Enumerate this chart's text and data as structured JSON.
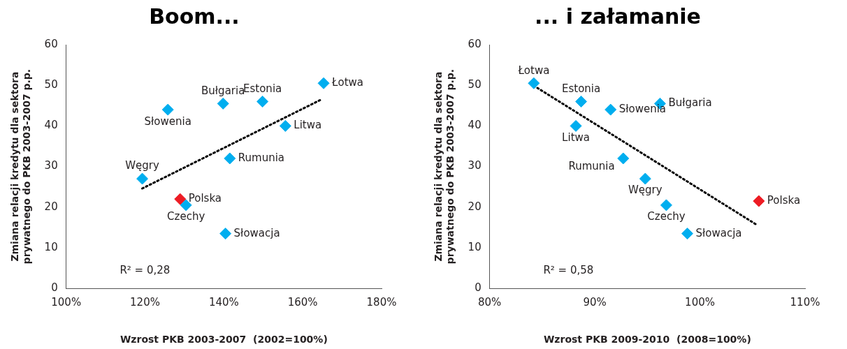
{
  "chart_data": [
    {
      "type": "scatter",
      "title": "Boom...",
      "xlabel": "Wzrost PKB 2003-2007  (2002=100%)",
      "ylabel": "Zmiana relacji kredytu dla sektora prywatnego do PKB 2003-2007 p.p.",
      "xlim": [
        100,
        180
      ],
      "xticks": [
        {
          "value": 100,
          "label": "100%"
        },
        {
          "value": 120,
          "label": "120%"
        },
        {
          "value": 140,
          "label": "140%"
        },
        {
          "value": 160,
          "label": "160%"
        },
        {
          "value": 180,
          "label": "180%"
        }
      ],
      "ylim": [
        0,
        60
      ],
      "yticks": [
        0,
        10,
        20,
        30,
        40,
        50,
        60
      ],
      "grid": false,
      "legend": false,
      "marker": "diamond",
      "annotations": [
        "R² = 0,28"
      ],
      "series": [
        {
          "name": "Węgry",
          "color": "#00aeef",
          "x": [
            119.3
          ],
          "values": [
            27
          ]
        },
        {
          "name": "Polska",
          "color": "#ed1c24",
          "x": [
            128.9
          ],
          "values": [
            22
          ]
        },
        {
          "name": "Czechy",
          "color": "#00aeef",
          "x": [
            130.4
          ],
          "values": [
            20.5
          ]
        },
        {
          "name": "Słowenia",
          "color": "#00aeef",
          "x": [
            125.8
          ],
          "values": [
            44
          ]
        },
        {
          "name": "Bułgaria",
          "color": "#00aeef",
          "x": [
            139.8
          ],
          "values": [
            45.5
          ]
        },
        {
          "name": "Estonia",
          "color": "#00aeef",
          "x": [
            149.8
          ],
          "values": [
            46
          ]
        },
        {
          "name": "Łotwa",
          "color": "#00aeef",
          "x": [
            165.3
          ],
          "values": [
            50.5
          ]
        },
        {
          "name": "Litwa",
          "color": "#00aeef",
          "x": [
            155.6
          ],
          "values": [
            40
          ]
        },
        {
          "name": "Rumunia",
          "color": "#00aeef",
          "x": [
            141.5
          ],
          "values": [
            32
          ]
        },
        {
          "name": "Słowacja",
          "color": "#00aeef",
          "x": [
            140.4
          ],
          "values": [
            13.5
          ]
        },
        {
          "type": "line",
          "color": "#000000",
          "line_style": "dotted",
          "marker": "none",
          "x": [
            119.3,
            164.5
          ],
          "values": [
            24.6,
            46.4
          ]
        }
      ]
    },
    {
      "type": "scatter",
      "title": "... i załamanie",
      "xlabel": "Wzrost PKB 2009-2010  (2008=100%)",
      "ylabel": "Zmiana relacji kredytu dla sektora prywatnego do PKB 2003-2007 p.p.",
      "xlim": [
        80,
        110
      ],
      "xticks": [
        {
          "value": 80,
          "label": "80%"
        },
        {
          "value": 90,
          "label": "90%"
        },
        {
          "value": 100,
          "label": "100%"
        },
        {
          "value": 110,
          "label": "110%"
        }
      ],
      "ylim": [
        0,
        60
      ],
      "yticks": [
        0,
        10,
        20,
        30,
        40,
        50,
        60
      ],
      "grid": false,
      "legend": false,
      "marker": "diamond",
      "annotations": [
        "R² = 0,58"
      ],
      "series": [
        {
          "name": "Łotwa",
          "color": "#00aeef",
          "x": [
            84.2
          ],
          "values": [
            50.5
          ]
        },
        {
          "name": "Estonia",
          "color": "#00aeef",
          "x": [
            88.7
          ],
          "values": [
            46
          ]
        },
        {
          "name": "Bułgaria",
          "color": "#00aeef",
          "x": [
            96.2
          ],
          "values": [
            45.5
          ]
        },
        {
          "name": "Słowenia",
          "color": "#00aeef",
          "x": [
            91.5
          ],
          "values": [
            44
          ]
        },
        {
          "name": "Litwa",
          "color": "#00aeef",
          "x": [
            88.2
          ],
          "values": [
            40
          ]
        },
        {
          "name": "Rumunia",
          "color": "#00aeef",
          "x": [
            92.7
          ],
          "values": [
            32
          ]
        },
        {
          "name": "Węgry",
          "color": "#00aeef",
          "x": [
            94.8
          ],
          "values": [
            27
          ]
        },
        {
          "name": "Czechy",
          "color": "#00aeef",
          "x": [
            96.8
          ],
          "values": [
            20.5
          ]
        },
        {
          "name": "Polska",
          "color": "#ed1c24",
          "x": [
            105.6
          ],
          "values": [
            21.5
          ]
        },
        {
          "name": "Słowacja",
          "color": "#00aeef",
          "x": [
            98.8
          ],
          "values": [
            13.5
          ]
        },
        {
          "type": "line",
          "color": "#000000",
          "line_style": "dotted",
          "marker": "none",
          "x": [
            84.2,
            105.5
          ],
          "values": [
            49.9,
            15.5
          ]
        }
      ]
    }
  ]
}
